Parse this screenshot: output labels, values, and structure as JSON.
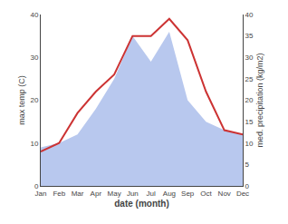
{
  "chart_data": {
    "type": "line",
    "xlabel": "date (month)",
    "ylabel": "max temp (C)",
    "y2label": "med. precipitation (kg/m2)",
    "categories": [
      "Jan",
      "Feb",
      "Mar",
      "Apr",
      "May",
      "Jun",
      "Jul",
      "Aug",
      "Sep",
      "Oct",
      "Nov",
      "Dec"
    ],
    "series": [
      {
        "type": "area",
        "axis": "y2",
        "color": "#b8c8ee",
        "values": [
          9,
          10,
          12,
          18,
          25,
          35,
          29,
          36,
          20,
          15,
          13,
          12
        ]
      },
      {
        "type": "line",
        "color": "#cc3333",
        "values": [
          8,
          10,
          17,
          22,
          26,
          35,
          35,
          39,
          34,
          22,
          13,
          12
        ]
      }
    ],
    "ylim": [
      0,
      40
    ],
    "yticks": [
      0,
      10,
      20,
      30,
      40
    ],
    "y2lim": [
      0,
      40
    ],
    "y2ticks": [
      0,
      5,
      10,
      15,
      20,
      25,
      30,
      35,
      40
    ],
    "grid": false
  }
}
